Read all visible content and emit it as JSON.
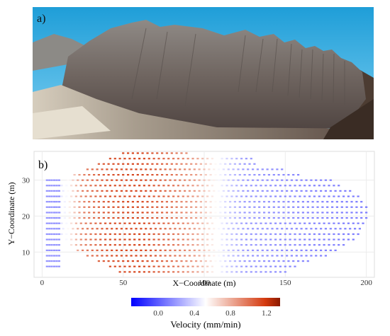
{
  "panels": {
    "photo_label": "a)",
    "plot_label": "b)"
  },
  "chart_data": {
    "type": "scatter",
    "title": "",
    "xlabel": "X−Coordinate (m)",
    "ylabel": "Y−Coordinate (m)",
    "xlim": [
      -5,
      205
    ],
    "ylim": [
      3,
      38
    ],
    "xticks": [
      0,
      50,
      100,
      150,
      200
    ],
    "yticks": [
      10,
      20,
      30
    ],
    "grid": true,
    "point_marker": "small square",
    "color_encoding": "Velocity (mm/min)",
    "rows": [
      {
        "y": 37.5,
        "x_min": 50,
        "x_max": 90
      },
      {
        "y": 36.0,
        "x_min": 42,
        "x_max": 130
      },
      {
        "y": 34.5,
        "x_min": 35,
        "x_max": 132
      },
      {
        "y": 33.0,
        "x_min": 28,
        "x_max": 150
      },
      {
        "y": 31.5,
        "x_min": 20,
        "x_max": 160
      },
      {
        "y": 30.0,
        "x_min": 16,
        "x_max": 180
      },
      {
        "y": 28.5,
        "x_min": 12,
        "x_max": 185
      },
      {
        "y": 27.0,
        "x_min": 10,
        "x_max": 190
      },
      {
        "y": 25.5,
        "x_min": 9,
        "x_max": 195
      },
      {
        "y": 24.0,
        "x_min": 8,
        "x_max": 198
      },
      {
        "y": 22.5,
        "x_min": 8,
        "x_max": 200
      },
      {
        "y": 21.0,
        "x_min": 8,
        "x_max": 200
      },
      {
        "y": 19.5,
        "x_min": 8,
        "x_max": 200
      },
      {
        "y": 18.0,
        "x_min": 9,
        "x_max": 200
      },
      {
        "y": 16.5,
        "x_min": 10,
        "x_max": 198
      },
      {
        "y": 15.0,
        "x_min": 12,
        "x_max": 195
      },
      {
        "y": 13.5,
        "x_min": 15,
        "x_max": 192
      },
      {
        "y": 12.0,
        "x_min": 18,
        "x_max": 188
      },
      {
        "y": 10.5,
        "x_min": 22,
        "x_max": 182
      },
      {
        "y": 9.0,
        "x_min": 28,
        "x_max": 175
      },
      {
        "y": 7.5,
        "x_min": 35,
        "x_max": 165
      },
      {
        "y": 6.0,
        "x_min": 42,
        "x_max": 158
      },
      {
        "y": 4.5,
        "x_min": 48,
        "x_max": 150
      }
    ],
    "left_cluster": {
      "x_values": [
        3,
        4.5,
        6,
        7.5,
        9,
        10.5
      ],
      "y_min": 6,
      "y_max": 30,
      "velocity": 0.18
    },
    "velocity_profile": {
      "x": [
        0,
        15,
        25,
        40,
        60,
        80,
        95,
        105,
        115,
        125,
        135,
        150,
        175,
        200
      ],
      "v": [
        0.2,
        0.5,
        0.95,
        1.1,
        1.15,
        1.0,
        0.85,
        0.6,
        0.35,
        0.2,
        0.18,
        0.15,
        0.12,
        0.1
      ]
    },
    "colorbar": {
      "label": "Velocity (mm/min)",
      "min": -0.3,
      "max": 1.35,
      "ticks": [
        "0.0",
        "0.4",
        "0.8",
        "1.2"
      ],
      "tick_values": [
        0.0,
        0.4,
        0.8,
        1.2
      ],
      "colors": {
        "low": "#0000ff",
        "mid": "#ffffff",
        "high": "#d43a0f",
        "top": "#8b1a00"
      }
    }
  }
}
